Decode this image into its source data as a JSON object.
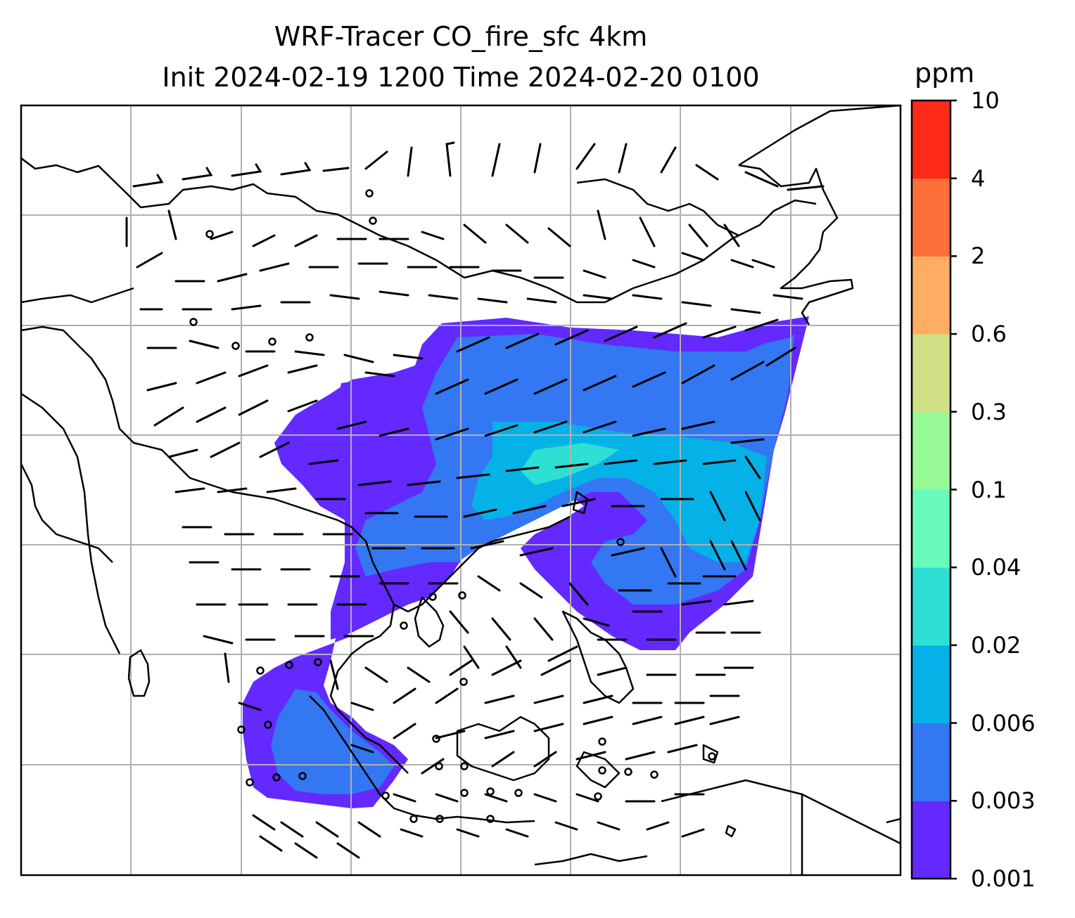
{
  "title": {
    "line1": "WRF-Tracer CO_fire_sfc 4km",
    "line2": "Init 2024-02-19 1200 Time 2024-02-20 0100"
  },
  "colorbar": {
    "unit": "ppm",
    "levels": [
      "0.001",
      "0.003",
      "0.006",
      "0.02",
      "0.04",
      "0.1",
      "0.3",
      "0.6",
      "2",
      "4",
      "10"
    ],
    "colors": [
      "#6329FF",
      "#3377F3",
      "#05B2E8",
      "#2DE0D3",
      "#69FBBC",
      "#97F896",
      "#D0E185",
      "#FEAD62",
      "#FF6F39",
      "#FF2A17"
    ]
  },
  "map": {
    "gridlines": true,
    "features": [
      "coastlines",
      "country-borders",
      "wind-barbs",
      "calm-circles",
      "tracer-plume"
    ]
  }
}
